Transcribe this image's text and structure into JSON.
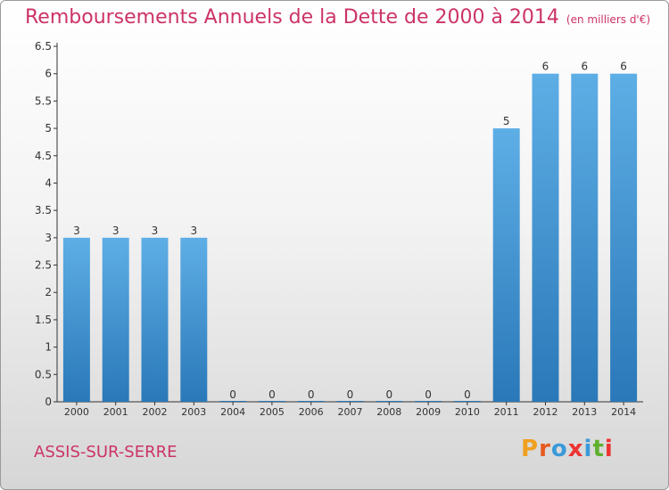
{
  "header": {
    "title": "Remboursements Annuels de la Dette de 2000 à 2014",
    "unit": "(en milliers d'€)"
  },
  "footer": {
    "commune": "ASSIS-SUR-SERRE",
    "logo": "Proxiti",
    "logo_colors": [
      "#f0a020",
      "#e65a20",
      "#3a9ad9",
      "#ee3333",
      "#3a9ad9",
      "#60b030",
      "#ee3333"
    ]
  },
  "chart_data": {
    "type": "bar",
    "categories": [
      "2000",
      "2001",
      "2002",
      "2003",
      "2004",
      "2005",
      "2006",
      "2007",
      "2008",
      "2009",
      "2010",
      "2011",
      "2012",
      "2013",
      "2014"
    ],
    "values": [
      3,
      3,
      3,
      3,
      0,
      0,
      0,
      0,
      0,
      0,
      0,
      5,
      6,
      6,
      6
    ],
    "data_labels": [
      "3",
      "3",
      "3",
      "3",
      "0",
      "0",
      "0",
      "0",
      "0",
      "0",
      "0",
      "5",
      "6",
      "6",
      "6"
    ],
    "y_ticks": [
      "0",
      "0.5",
      "1",
      "1.5",
      "2",
      "2.5",
      "3",
      "3.5",
      "4",
      "4.5",
      "5",
      "5.5",
      "6",
      "6.5"
    ],
    "ylim": [
      0,
      6.5
    ],
    "grid": false,
    "bar_color_top": "#5eaee6",
    "bar_color_bottom": "#2a78b8"
  }
}
